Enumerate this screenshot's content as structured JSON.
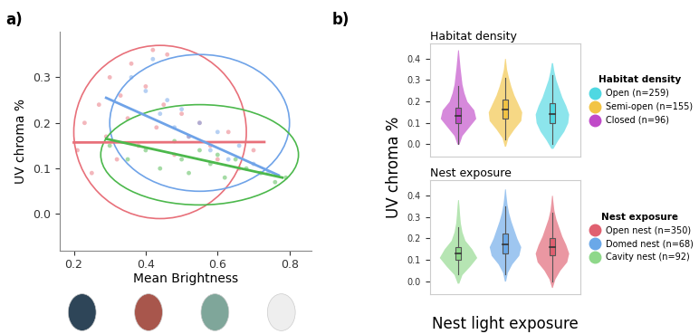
{
  "chart_data": [
    {
      "type": "scatter",
      "panel_label": "a)",
      "x_label": "Mean Brightness",
      "y_label": "UV chroma %",
      "xlim": [
        0.16,
        0.86
      ],
      "ylim": [
        -0.08,
        0.4
      ],
      "xticks": [
        0.2,
        0.4,
        0.6,
        0.8
      ],
      "yticks": [
        {
          "value": 0,
          "label": "0.0"
        },
        0.1,
        0.2,
        0.3
      ],
      "series": [
        {
          "color": "#e8707a",
          "x": [
            0.21,
            0.23,
            0.25,
            0.27,
            0.29,
            0.3,
            0.32,
            0.33,
            0.35,
            0.36,
            0.38,
            0.4,
            0.42,
            0.43,
            0.45,
            0.46,
            0.48,
            0.5,
            0.52,
            0.55,
            0.58,
            0.6,
            0.63,
            0.66,
            0.7
          ],
          "y": [
            0.14,
            0.2,
            0.09,
            0.24,
            0.17,
            0.3,
            0.12,
            0.26,
            0.21,
            0.33,
            0.15,
            0.28,
            0.36,
            0.19,
            0.24,
            0.35,
            0.13,
            0.22,
            0.17,
            0.2,
            0.15,
            0.12,
            0.18,
            0.1,
            0.14
          ],
          "trend": {
            "x": [
              0.2,
              0.73
            ],
            "y": [
              0.157,
              0.158
            ]
          },
          "ellipse": {
            "center": [
              0.44,
              0.18
            ],
            "width": 0.48,
            "height": 0.38
          }
        },
        {
          "color": "#6fa3e8",
          "x": [
            0.36,
            0.4,
            0.42,
            0.44,
            0.46,
            0.48,
            0.5,
            0.52,
            0.55,
            0.58,
            0.6,
            0.63,
            0.66,
            0.7,
            0.74
          ],
          "y": [
            0.3,
            0.27,
            0.34,
            0.22,
            0.25,
            0.19,
            0.23,
            0.17,
            0.2,
            0.14,
            0.18,
            0.12,
            0.15,
            0.11,
            0.09
          ],
          "trend": {
            "x": [
              0.29,
              0.77
            ],
            "y": [
              0.255,
              0.085
            ]
          },
          "ellipse": {
            "center": [
              0.55,
              0.2
            ],
            "width": 0.5,
            "height": 0.3
          }
        },
        {
          "color": "#4cb84c",
          "x": [
            0.3,
            0.35,
            0.4,
            0.44,
            0.48,
            0.5,
            0.52,
            0.55,
            0.58,
            0.6,
            0.62,
            0.65,
            0.68,
            0.72,
            0.76,
            0.79
          ],
          "y": [
            0.15,
            0.12,
            0.14,
            0.1,
            0.16,
            0.12,
            0.09,
            0.14,
            0.11,
            0.13,
            0.08,
            0.12,
            0.1,
            0.09,
            0.07,
            0.08
          ],
          "trend": {
            "x": [
              0.29,
              0.78
            ],
            "y": [
              0.165,
              0.08
            ]
          },
          "ellipse": {
            "center": [
              0.55,
              0.13
            ],
            "width": 0.55,
            "height": 0.22
          }
        }
      ]
    },
    {
      "type": "violin",
      "panel_label": "b)",
      "title": "Habitat density",
      "legend_title": "Habitat density",
      "y_label": "UV chroma %",
      "legend": "center left",
      "tick_labels": "y",
      "ylim": [
        -0.06,
        0.47
      ],
      "yticks": [
        {
          "value": 0,
          "label": "0.0"
        },
        0.1,
        0.2,
        0.3,
        0.4
      ],
      "series": [
        {
          "name": "Closed (n=96)",
          "color": "#c04ac8",
          "median": 0.13,
          "q1": 0.1,
          "q3": 0.17,
          "whisker_low": 0.0,
          "whisker_high": 0.27,
          "density_y": [
            0.0,
            0.04,
            0.08,
            0.12,
            0.16,
            0.2,
            0.24,
            0.28,
            0.32,
            0.36,
            0.4,
            0.44
          ],
          "density_width": [
            0.05,
            0.2,
            0.55,
            0.9,
            0.8,
            0.45,
            0.3,
            0.2,
            0.15,
            0.1,
            0.06,
            0.02
          ]
        },
        {
          "name": "Semi-open (n=155)",
          "color": "#f2c444",
          "median": 0.16,
          "q1": 0.12,
          "q3": 0.21,
          "whisker_low": 0.02,
          "whisker_high": 0.31,
          "density_y": [
            -0.01,
            0.03,
            0.07,
            0.11,
            0.15,
            0.19,
            0.23,
            0.27,
            0.31,
            0.35,
            0.4
          ],
          "density_width": [
            0.03,
            0.15,
            0.45,
            0.8,
            0.85,
            0.65,
            0.45,
            0.3,
            0.18,
            0.08,
            0.02
          ]
        },
        {
          "name": "Open (n=259)",
          "color": "#4fd8e2",
          "median": 0.14,
          "q1": 0.1,
          "q3": 0.19,
          "whisker_low": 0.0,
          "whisker_high": 0.32,
          "density_y": [
            -0.02,
            0.02,
            0.06,
            0.1,
            0.14,
            0.18,
            0.22,
            0.26,
            0.3,
            0.34,
            0.38
          ],
          "density_width": [
            0.05,
            0.3,
            0.6,
            0.8,
            0.85,
            0.7,
            0.5,
            0.35,
            0.2,
            0.1,
            0.03
          ]
        }
      ]
    },
    {
      "type": "violin",
      "title": "Nest exposure",
      "legend_title": "Nest exposure",
      "x_label": "Nest light exposure",
      "legend": "center left",
      "tick_labels": "y",
      "ylim": [
        -0.06,
        0.47
      ],
      "yticks": [
        {
          "value": 0,
          "label": "0.0"
        },
        0.1,
        0.2,
        0.3,
        0.4
      ],
      "series": [
        {
          "name": "Cavity nest (n=92)",
          "color": "#8fd88a",
          "median": 0.13,
          "q1": 0.1,
          "q3": 0.16,
          "whisker_low": 0.03,
          "whisker_high": 0.25,
          "density_y": [
            -0.01,
            0.03,
            0.07,
            0.11,
            0.15,
            0.19,
            0.23,
            0.27,
            0.31,
            0.35,
            0.38
          ],
          "density_width": [
            0.04,
            0.2,
            0.6,
            0.95,
            0.7,
            0.35,
            0.2,
            0.12,
            0.08,
            0.05,
            0.02
          ]
        },
        {
          "name": "Domed nest (n=68)",
          "color": "#6aa8e8",
          "median": 0.17,
          "q1": 0.13,
          "q3": 0.22,
          "whisker_low": 0.03,
          "whisker_high": 0.35,
          "density_y": [
            0.0,
            0.04,
            0.08,
            0.12,
            0.16,
            0.2,
            0.24,
            0.28,
            0.32,
            0.36,
            0.4,
            0.43
          ],
          "density_width": [
            0.03,
            0.12,
            0.35,
            0.7,
            0.8,
            0.6,
            0.45,
            0.3,
            0.18,
            0.1,
            0.05,
            0.02
          ]
        },
        {
          "name": "Open nest (n=350)",
          "color": "#e06070",
          "median": 0.16,
          "q1": 0.12,
          "q3": 0.2,
          "whisker_low": 0.0,
          "whisker_high": 0.32,
          "density_y": [
            -0.03,
            0.01,
            0.05,
            0.09,
            0.13,
            0.17,
            0.21,
            0.25,
            0.29,
            0.33,
            0.37,
            0.4
          ],
          "density_width": [
            0.02,
            0.15,
            0.4,
            0.75,
            0.85,
            0.7,
            0.5,
            0.35,
            0.2,
            0.1,
            0.05,
            0.02
          ]
        }
      ]
    }
  ]
}
